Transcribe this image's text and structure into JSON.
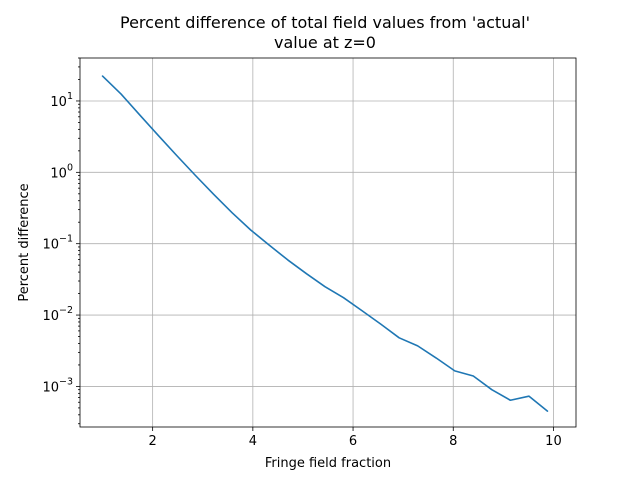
{
  "chart_data": {
    "type": "line",
    "title_lines": [
      "Percent difference of total field values from 'actual'",
      "value at z=0"
    ],
    "xlabel": "Fringe field fraction",
    "ylabel": "Percent difference",
    "xlim": [
      0.55,
      10.45
    ],
    "ylim": [
      0.00027,
      40
    ],
    "yscale": "log",
    "grid": true,
    "x_ticks": [
      2,
      4,
      6,
      8,
      10
    ],
    "x_tick_labels": [
      "2",
      "4",
      "6",
      "8",
      "10"
    ],
    "y_ticks": [
      0.001,
      0.01,
      0.1,
      1,
      10
    ],
    "y_tick_labels": [
      {
        "base": "10",
        "exp": "−3"
      },
      {
        "base": "10",
        "exp": "−2"
      },
      {
        "base": "10",
        "exp": "−1"
      },
      {
        "base": "10",
        "exp": "0"
      },
      {
        "base": "10",
        "exp": "1"
      }
    ],
    "series": [
      {
        "color": "#1f77b4",
        "x": [
          1.0,
          1.37,
          1.74,
          2.11,
          2.48,
          2.85,
          3.22,
          3.59,
          3.96,
          4.33,
          4.7,
          5.07,
          5.44,
          5.81,
          6.18,
          6.55,
          6.92,
          7.29,
          7.66,
          8.03,
          8.4,
          8.77,
          9.14,
          9.51,
          9.88
        ],
        "y": [
          22.3,
          12.5,
          6.4,
          3.3,
          1.72,
          0.91,
          0.49,
          0.27,
          0.155,
          0.095,
          0.059,
          0.038,
          0.025,
          0.0175,
          0.0115,
          0.0075,
          0.0048,
          0.0037,
          0.0025,
          0.00165,
          0.0014,
          0.0009,
          0.00064,
          0.00073,
          0.00045
        ]
      }
    ]
  }
}
